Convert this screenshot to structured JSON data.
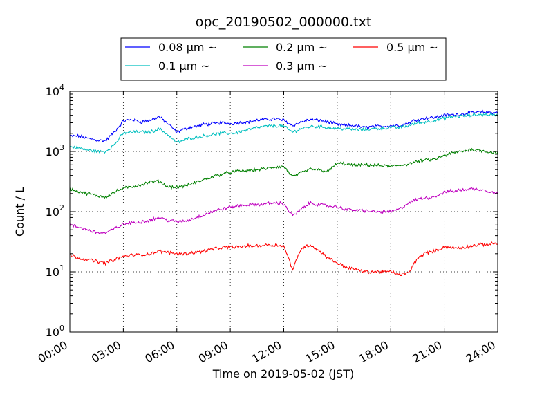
{
  "chart_data": {
    "type": "line",
    "title": "opc_20190502_000000.txt",
    "xlabel": "Time on 2019-05-02 (JST)",
    "ylabel": "Count / L",
    "yscale": "log",
    "ylim": [
      1,
      10000
    ],
    "xlim": [
      "00:00",
      "24:00"
    ],
    "grid": true,
    "legend_placement": "top-center",
    "x_tick_labels": [
      "00:00",
      "03:00",
      "06:00",
      "09:00",
      "12:00",
      "15:00",
      "18:00",
      "21:00",
      "24:00"
    ],
    "y_tick_labels": [
      {
        "base": "10",
        "exp": "0"
      },
      {
        "base": "10",
        "exp": "1"
      },
      {
        "base": "10",
        "exp": "2"
      },
      {
        "base": "10",
        "exp": "3"
      },
      {
        "base": "10",
        "exp": "4"
      }
    ],
    "x": [
      "00:00",
      "00:30",
      "01:00",
      "01:30",
      "02:00",
      "02:30",
      "03:00",
      "03:30",
      "04:00",
      "04:30",
      "05:00",
      "05:30",
      "06:00",
      "06:30",
      "07:00",
      "07:30",
      "08:00",
      "08:30",
      "09:00",
      "09:30",
      "10:00",
      "10:30",
      "11:00",
      "11:30",
      "12:00",
      "12:30",
      "13:00",
      "13:30",
      "14:00",
      "14:30",
      "15:00",
      "15:30",
      "16:00",
      "16:30",
      "17:00",
      "17:30",
      "18:00",
      "18:30",
      "19:00",
      "19:30",
      "20:00",
      "20:30",
      "21:00",
      "21:30",
      "22:00",
      "22:30",
      "23:00",
      "23:30",
      "24:00"
    ],
    "series": [
      {
        "name": "0.08 μm ~",
        "color": "#0000ff",
        "values": [
          1800,
          1800,
          1650,
          1550,
          1500,
          2100,
          3200,
          3400,
          3100,
          3300,
          3800,
          2900,
          2100,
          2400,
          2600,
          2800,
          2900,
          3000,
          2900,
          3000,
          3100,
          3300,
          3400,
          3500,
          3300,
          2700,
          3100,
          3400,
          3300,
          3100,
          2800,
          2700,
          2700,
          2500,
          2600,
          2600,
          2700,
          2700,
          3000,
          3400,
          3600,
          3700,
          4000,
          4100,
          4200,
          4400,
          4500,
          4500,
          4400
        ]
      },
      {
        "name": "0.1 μm ~",
        "color": "#00bfbf",
        "values": [
          1200,
          1150,
          1050,
          1000,
          1000,
          1300,
          2000,
          2100,
          2100,
          2100,
          2400,
          1900,
          1400,
          1600,
          1700,
          1800,
          1900,
          2000,
          2000,
          2100,
          2300,
          2500,
          2600,
          2700,
          2600,
          2100,
          2400,
          2600,
          2600,
          2500,
          2400,
          2400,
          2300,
          2300,
          2400,
          2400,
          2500,
          2500,
          2700,
          3000,
          3100,
          3300,
          3600,
          3800,
          3900,
          4000,
          4100,
          4100,
          4000
        ]
      },
      {
        "name": "0.2 μm ~",
        "color": "#008000",
        "values": [
          240,
          215,
          200,
          185,
          175,
          210,
          245,
          260,
          280,
          310,
          320,
          260,
          255,
          270,
          300,
          340,
          380,
          420,
          450,
          470,
          480,
          500,
          520,
          550,
          560,
          380,
          440,
          510,
          490,
          470,
          640,
          620,
          580,
          600,
          590,
          580,
          560,
          590,
          620,
          680,
          720,
          740,
          850,
          950,
          1000,
          1080,
          1050,
          980,
          950
        ]
      },
      {
        "name": "0.3 μm ~",
        "color": "#bf00bf",
        "values": [
          60,
          55,
          50,
          45,
          44,
          52,
          62,
          65,
          68,
          72,
          80,
          72,
          68,
          70,
          78,
          88,
          100,
          110,
          120,
          125,
          130,
          130,
          135,
          140,
          135,
          85,
          110,
          140,
          130,
          125,
          120,
          110,
          105,
          105,
          100,
          100,
          100,
          110,
          140,
          160,
          170,
          180,
          210,
          220,
          230,
          240,
          235,
          220,
          200
        ]
      },
      {
        "name": "0.5 μm ~",
        "color": "#ff0000",
        "values": [
          19,
          17,
          16,
          15,
          14,
          16,
          18,
          19,
          19,
          20,
          22,
          21,
          20,
          20,
          21,
          22,
          24,
          25,
          26,
          26,
          27,
          27,
          28,
          28,
          27,
          11,
          25,
          28,
          22,
          17,
          14,
          12,
          11,
          10,
          10,
          10,
          10,
          9,
          9.5,
          17,
          21,
          22,
          26,
          25,
          25,
          27,
          28,
          29,
          30
        ]
      }
    ]
  }
}
